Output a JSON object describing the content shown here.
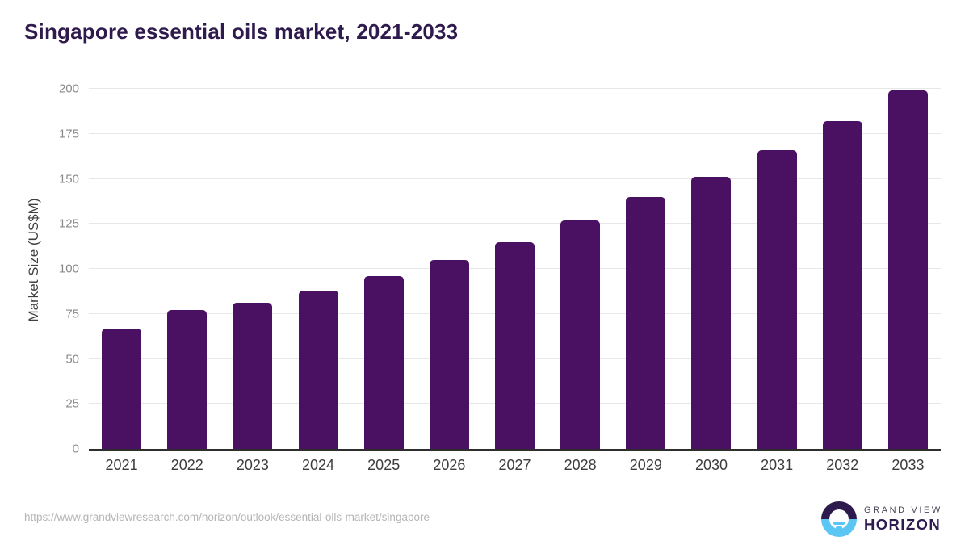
{
  "header": {
    "title": "Singapore essential oils market, 2021-2033"
  },
  "chart_data": {
    "type": "bar",
    "title": "Singapore essential oils market, 2021-2033",
    "categories": [
      "2021",
      "2022",
      "2023",
      "2024",
      "2025",
      "2026",
      "2027",
      "2028",
      "2029",
      "2030",
      "2031",
      "2032",
      "2033"
    ],
    "values": [
      67,
      77,
      81,
      88,
      96,
      105,
      115,
      127,
      140,
      151,
      166,
      182,
      199
    ],
    "xlabel": "",
    "ylabel": "Market Size (US$M)",
    "ylim": [
      0,
      200
    ],
    "ytick_step": 25,
    "yticks": [
      "0",
      "25",
      "50",
      "75",
      "100",
      "125",
      "150",
      "175",
      "200"
    ],
    "grid": true,
    "legend": "none",
    "bar_color": "#4a1162"
  },
  "footer": {
    "source_url": "https://www.grandviewresearch.com/horizon/outlook/essential-oils-market/singapore",
    "brand": {
      "line1": "GRAND VIEW",
      "line2": "HORIZON"
    }
  },
  "icons": {
    "logo_mark": "horizon-sun-circle"
  },
  "colors": {
    "bar": "#4a1162",
    "title_text": "#2f1a4d",
    "gridline": "#e8e8e8",
    "axis_line": "#2e2e2e",
    "y_tick_text": "#8a8a8a",
    "x_tick_text": "#3d3d3d",
    "url_text": "#b5b5b5",
    "logo_blue": "#5bc6f3",
    "logo_dark": "#2d1b4e"
  }
}
